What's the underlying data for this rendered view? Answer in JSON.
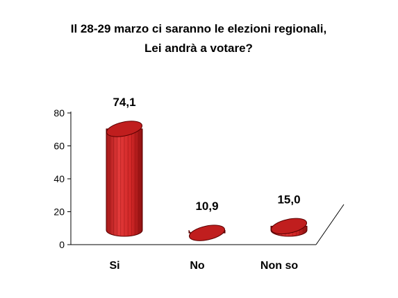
{
  "chart_data": {
    "type": "bar",
    "title_lines": [
      "Il 28-29 marzo ci saranno le elezioni regionali,",
      "Lei andrà a votare?"
    ],
    "categories": [
      "Si",
      "No",
      "Non so"
    ],
    "values": [
      74.1,
      10.9,
      15.0
    ],
    "data_labels": [
      "74,1",
      "10,9",
      "15,0"
    ],
    "ylim": [
      0,
      80
    ],
    "yticks": [
      "0",
      "20",
      "40",
      "60",
      "80"
    ],
    "grid": false,
    "bar_color": "#d42a2a",
    "bar_shape": "3d-cylinder"
  }
}
